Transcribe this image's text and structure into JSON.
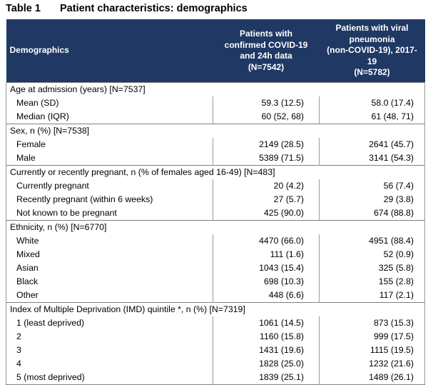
{
  "caption": {
    "number": "Table 1",
    "title": "Patient characteristics: demographics"
  },
  "header": {
    "col1": "Demographics",
    "col2": [
      "Patients with",
      "confirmed COVID-19",
      "and 24h data",
      "(N=7542)"
    ],
    "col3": [
      "Patients with viral",
      "pneumonia",
      "(non-COVID-19), 2017-19",
      "(N=5782)"
    ]
  },
  "sections": [
    {
      "label": "Age at admission (years) [N=7537]",
      "rows": [
        {
          "label": "Mean (SD)",
          "covid": "59.3 (12.5)",
          "viral": "58.0 (17.4)"
        },
        {
          "label": "Median (IQR)",
          "covid": "60 (52, 68)",
          "viral": "61 (48, 71)"
        }
      ]
    },
    {
      "label": "Sex, n (%) [N=7538]",
      "rows": [
        {
          "label": "Female",
          "covid": "2149 (28.5)",
          "viral": "2641 (45.7)"
        },
        {
          "label": "Male",
          "covid": "5389 (71.5)",
          "viral": "3141 (54.3)"
        }
      ]
    },
    {
      "label": "Currently or recently pregnant, n (% of females aged 16-49) [N=483]",
      "rows": [
        {
          "label": "Currently pregnant",
          "covid": "20 (4.2)",
          "viral": "56 (7.4)"
        },
        {
          "label": "Recently pregnant (within 6 weeks)",
          "covid": "27 (5.7)",
          "viral": "29 (3.8)"
        },
        {
          "label": "Not known to be pregnant",
          "covid": "425 (90.0)",
          "viral": "674 (88.8)"
        }
      ]
    },
    {
      "label": "Ethnicity, n (%) [N=6770]",
      "rows": [
        {
          "label": "White",
          "covid": "4470 (66.0)",
          "viral": "4951 (88.4)"
        },
        {
          "label": "Mixed",
          "covid": "111 (1.6)",
          "viral": "52 (0.9)"
        },
        {
          "label": "Asian",
          "covid": "1043 (15.4)",
          "viral": "325 (5.8)"
        },
        {
          "label": "Black",
          "covid": "698 (10.3)",
          "viral": "155 (2.8)"
        },
        {
          "label": "Other",
          "covid": "448 (6.6)",
          "viral": "117 (2.1)"
        }
      ]
    },
    {
      "label": "Index of Multiple Deprivation (IMD) quintile *, n (%) [N=7319]",
      "rows": [
        {
          "label": "1 (least deprived)",
          "covid": "1061 (14.5)",
          "viral": "873 (15.3)"
        },
        {
          "label": "2",
          "covid": "1160 (15.8)",
          "viral": "999 (17.5)"
        },
        {
          "label": "3",
          "covid": "1431 (19.6)",
          "viral": "1115 (19.5)"
        },
        {
          "label": "4",
          "covid": "1828 (25.0)",
          "viral": "1232 (21.6)"
        },
        {
          "label": "5 (most deprived)",
          "covid": "1839 (25.1)",
          "viral": "1489 (26.1)"
        }
      ]
    }
  ]
}
